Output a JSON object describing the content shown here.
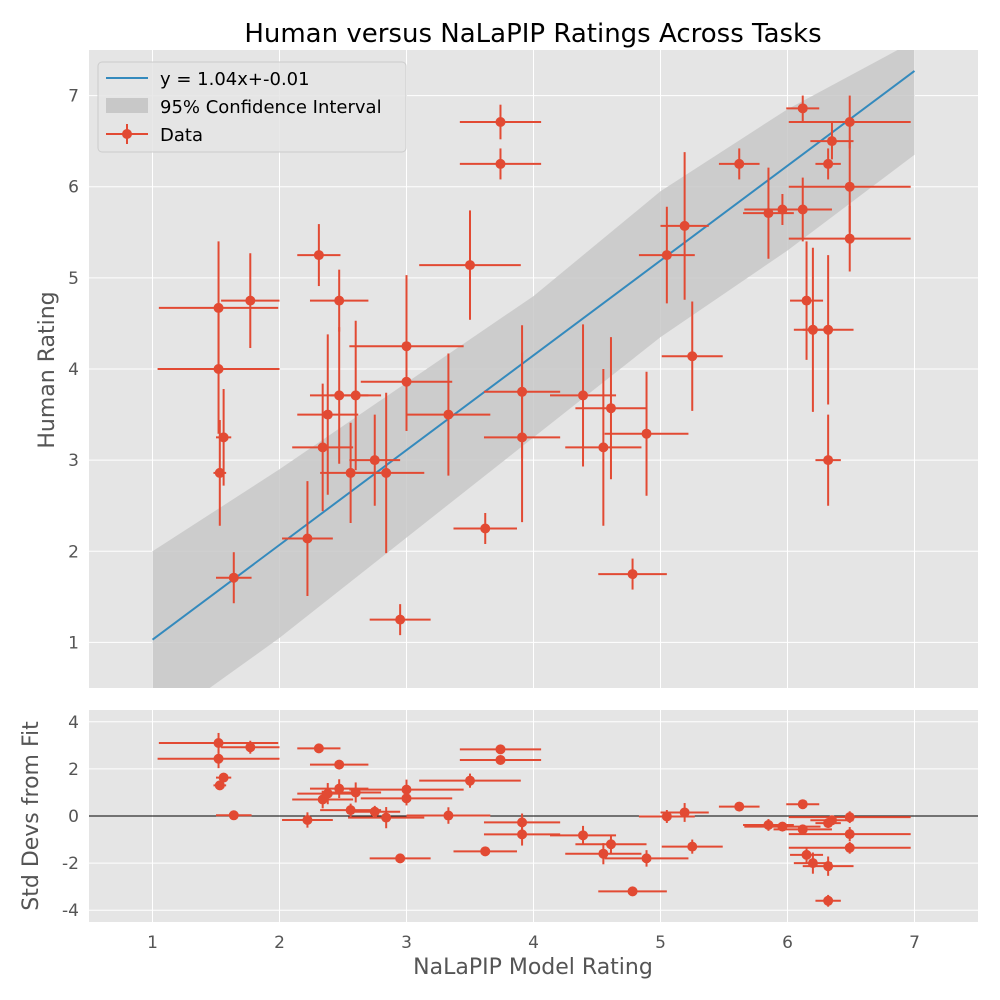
{
  "chart_data": {
    "type": "scatter",
    "title": "Human versus NaLaPIP Ratings Across Tasks",
    "xlabel": "NaLaPIP Model Rating",
    "ylabel_main": "Human Rating",
    "ylabel_resid": "Std Devs from Fit",
    "xlim": [
      0.5,
      7.5
    ],
    "ylim_main": [
      0.5,
      7.5
    ],
    "ylim_resid": [
      -4.5,
      4.5
    ],
    "xticks": [
      1,
      2,
      3,
      4,
      5,
      6,
      7
    ],
    "yticks_main": [
      1,
      2,
      3,
      4,
      5,
      6,
      7
    ],
    "yticks_resid": [
      -4,
      -2,
      0,
      2,
      4
    ],
    "grid": true,
    "legend_position": "top-left",
    "fit": {
      "slope": 1.04,
      "intercept": -0.01,
      "x_range": [
        1,
        7
      ]
    },
    "ci_band": {
      "x": [
        1,
        2,
        3,
        4,
        5,
        6,
        7
      ],
      "lower": [
        0.05,
        1.05,
        2.15,
        3.25,
        4.35,
        5.3,
        6.35
      ],
      "upper": [
        2.0,
        2.9,
        3.85,
        4.8,
        5.95,
        6.85,
        7.6
      ]
    },
    "legend": {
      "fit_label": "y = 1.04x+-0.01",
      "ci_label": "95% Confidence Interval",
      "data_label": "Data"
    },
    "colors": {
      "fit": "#348abd",
      "data": "#e24a33",
      "ci": "#c8c8c8",
      "panel_bg": "#e5e5e5",
      "grid": "#ffffff",
      "zero_line": "#000000"
    },
    "points": [
      {
        "x": 1.52,
        "y": 4.67,
        "xerr": 0.47,
        "yerr": 0.73,
        "resid": 3.1,
        "rerr": 0.85
      },
      {
        "x": 1.52,
        "y": 4.0,
        "xerr": 0.48,
        "yerr": 0.71,
        "resid": 2.43,
        "rerr": 0.8
      },
      {
        "x": 1.53,
        "y": 2.86,
        "xerr": 0.05,
        "yerr": 0.58,
        "resid": 1.3,
        "rerr": 0.3
      },
      {
        "x": 1.56,
        "y": 3.25,
        "xerr": 0.06,
        "yerr": 0.53,
        "resid": 1.63,
        "rerr": 0.4
      },
      {
        "x": 1.64,
        "y": 1.71,
        "xerr": 0.14,
        "yerr": 0.28,
        "resid": 0.03,
        "rerr": 0.2
      },
      {
        "x": 1.77,
        "y": 4.75,
        "xerr": 0.23,
        "yerr": 0.52,
        "resid": 2.92,
        "rerr": 0.55
      },
      {
        "x": 2.22,
        "y": 2.14,
        "xerr": 0.2,
        "yerr": 0.63,
        "resid": -0.17,
        "rerr": 0.65
      },
      {
        "x": 2.31,
        "y": 5.25,
        "xerr": 0.17,
        "yerr": 0.34,
        "resid": 2.87,
        "rerr": 0.35
      },
      {
        "x": 2.34,
        "y": 3.14,
        "xerr": 0.24,
        "yerr": 0.7,
        "resid": 0.7,
        "rerr": 0.75
      },
      {
        "x": 2.38,
        "y": 3.5,
        "xerr": 0.24,
        "yerr": 0.88,
        "resid": 0.95,
        "rerr": 0.9
      },
      {
        "x": 2.47,
        "y": 4.75,
        "xerr": 0.23,
        "yerr": 0.34,
        "resid": 2.18,
        "rerr": 0.35
      },
      {
        "x": 2.47,
        "y": 3.71,
        "xerr": 0.23,
        "yerr": 0.75,
        "resid": 1.16,
        "rerr": 0.8
      },
      {
        "x": 2.56,
        "y": 2.86,
        "xerr": 0.24,
        "yerr": 0.55,
        "resid": 0.25,
        "rerr": 0.55
      },
      {
        "x": 2.6,
        "y": 3.71,
        "xerr": 0.2,
        "yerr": 0.82,
        "resid": 1.0,
        "rerr": 0.85
      },
      {
        "x": 2.75,
        "y": 3.0,
        "xerr": 0.2,
        "yerr": 0.5,
        "resid": 0.18,
        "rerr": 0.5
      },
      {
        "x": 2.84,
        "y": 2.86,
        "xerr": 0.3,
        "yerr": 0.88,
        "resid": -0.07,
        "rerr": 0.9
      },
      {
        "x": 2.95,
        "y": 1.25,
        "xerr": 0.24,
        "yerr": 0.17,
        "resid": -1.8,
        "rerr": 0.2
      },
      {
        "x": 3.0,
        "y": 4.25,
        "xerr": 0.45,
        "yerr": 0.78,
        "resid": 1.12,
        "rerr": 0.85
      },
      {
        "x": 3.0,
        "y": 3.86,
        "xerr": 0.36,
        "yerr": 0.54,
        "resid": 0.75,
        "rerr": 0.6
      },
      {
        "x": 3.33,
        "y": 3.5,
        "xerr": 0.33,
        "yerr": 0.67,
        "resid": 0.02,
        "rerr": 0.7
      },
      {
        "x": 3.5,
        "y": 5.14,
        "xerr": 0.4,
        "yerr": 0.6,
        "resid": 1.5,
        "rerr": 0.6
      },
      {
        "x": 3.62,
        "y": 2.25,
        "xerr": 0.25,
        "yerr": 0.17,
        "resid": -1.5,
        "rerr": 0.2
      },
      {
        "x": 3.74,
        "y": 6.71,
        "xerr": 0.32,
        "yerr": 0.19,
        "resid": 2.83,
        "rerr": 0.3
      },
      {
        "x": 3.74,
        "y": 6.25,
        "xerr": 0.32,
        "yerr": 0.17,
        "resid": 2.38,
        "rerr": 0.3
      },
      {
        "x": 3.91,
        "y": 3.75,
        "xerr": 0.3,
        "yerr": 0.73,
        "resid": -0.27,
        "rerr": 0.75
      },
      {
        "x": 3.91,
        "y": 3.25,
        "xerr": 0.3,
        "yerr": 0.93,
        "resid": -0.78,
        "rerr": 0.95
      },
      {
        "x": 4.39,
        "y": 3.71,
        "xerr": 0.26,
        "yerr": 0.78,
        "resid": -0.82,
        "rerr": 0.8
      },
      {
        "x": 4.55,
        "y": 3.14,
        "xerr": 0.3,
        "yerr": 0.86,
        "resid": -1.6,
        "rerr": 0.9
      },
      {
        "x": 4.61,
        "y": 3.57,
        "xerr": 0.28,
        "yerr": 0.78,
        "resid": -1.2,
        "rerr": 0.8
      },
      {
        "x": 4.78,
        "y": 1.75,
        "xerr": 0.27,
        "yerr": 0.17,
        "resid": -3.2,
        "rerr": 0.2
      },
      {
        "x": 4.89,
        "y": 3.29,
        "xerr": 0.33,
        "yerr": 0.68,
        "resid": -1.8,
        "rerr": 0.7
      },
      {
        "x": 5.05,
        "y": 5.25,
        "xerr": 0.22,
        "yerr": 0.53,
        "resid": -0.02,
        "rerr": 0.55
      },
      {
        "x": 5.19,
        "y": 5.57,
        "xerr": 0.19,
        "yerr": 0.81,
        "resid": 0.15,
        "rerr": 0.8
      },
      {
        "x": 5.25,
        "y": 4.14,
        "xerr": 0.24,
        "yerr": 0.6,
        "resid": -1.3,
        "rerr": 0.6
      },
      {
        "x": 5.62,
        "y": 6.25,
        "xerr": 0.16,
        "yerr": 0.17,
        "resid": 0.4,
        "rerr": 0.15
      },
      {
        "x": 5.85,
        "y": 5.71,
        "xerr": 0.2,
        "yerr": 0.5,
        "resid": -0.38,
        "rerr": 0.5
      },
      {
        "x": 5.96,
        "y": 5.75,
        "xerr": 0.3,
        "yerr": 0.17,
        "resid": -0.45,
        "rerr": 0.2
      },
      {
        "x": 6.12,
        "y": 6.86,
        "xerr": 0.13,
        "yerr": 0.14,
        "resid": 0.5,
        "rerr": 0.15
      },
      {
        "x": 6.12,
        "y": 5.75,
        "xerr": 0.23,
        "yerr": 0.35,
        "resid": -0.57,
        "rerr": 0.35
      },
      {
        "x": 6.15,
        "y": 4.75,
        "xerr": 0.13,
        "yerr": 0.65,
        "resid": -1.65,
        "rerr": 0.65
      },
      {
        "x": 6.2,
        "y": 4.43,
        "xerr": 0.15,
        "yerr": 0.9,
        "resid": -2.0,
        "rerr": 0.9
      },
      {
        "x": 6.32,
        "y": 4.43,
        "xerr": 0.2,
        "yerr": 0.82,
        "resid": -2.13,
        "rerr": 0.82
      },
      {
        "x": 6.32,
        "y": 3.0,
        "xerr": 0.1,
        "yerr": 0.5,
        "resid": -3.6,
        "rerr": 0.5
      },
      {
        "x": 6.32,
        "y": 6.25,
        "xerr": 0.1,
        "yerr": 0.17,
        "resid": -0.3,
        "rerr": 0.15
      },
      {
        "x": 6.35,
        "y": 6.5,
        "xerr": 0.17,
        "yerr": 0.2,
        "resid": -0.18,
        "rerr": 0.2
      },
      {
        "x": 6.49,
        "y": 6.71,
        "xerr": 0.48,
        "yerr": 0.29,
        "resid": -0.05,
        "rerr": 0.5
      },
      {
        "x": 6.49,
        "y": 6.0,
        "xerr": 0.48,
        "yerr": 0.5,
        "resid": -0.77,
        "rerr": 0.6
      },
      {
        "x": 6.49,
        "y": 5.43,
        "xerr": 0.48,
        "yerr": 0.36,
        "resid": -1.35,
        "rerr": 0.5
      }
    ]
  }
}
